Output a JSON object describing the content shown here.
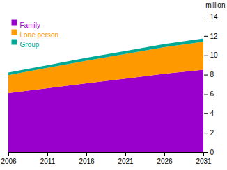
{
  "chart_data": {
    "type": "area",
    "stacked": true,
    "x": [
      2006,
      2011,
      2016,
      2021,
      2026,
      2031
    ],
    "series": [
      {
        "name": "Family",
        "color": "#9900cc",
        "values": [
          6.1,
          6.6,
          7.1,
          7.6,
          8.1,
          8.5
        ]
      },
      {
        "name": "Lone person",
        "color": "#ff9900",
        "values": [
          1.85,
          2.1,
          2.35,
          2.55,
          2.75,
          2.9
        ]
      },
      {
        "name": "Group",
        "color": "#00a896",
        "values": [
          0.27,
          0.28,
          0.295,
          0.305,
          0.315,
          0.33
        ]
      }
    ],
    "xlim": [
      2006,
      2031
    ],
    "xticks": [
      2006,
      2011,
      2016,
      2021,
      2026,
      2031
    ],
    "ylabel": "million",
    "ylim": [
      0,
      14
    ],
    "yticks": [
      0,
      2,
      4,
      6,
      8,
      10,
      12,
      14
    ],
    "legend": "upper left"
  }
}
